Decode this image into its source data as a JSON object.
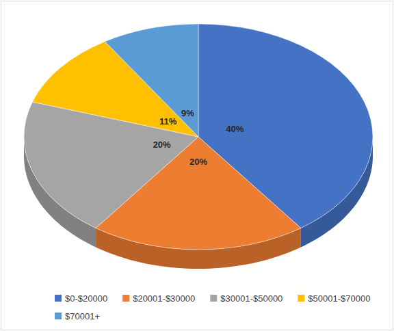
{
  "chart_data": {
    "type": "pie",
    "categories": [
      "$0-$20000",
      "$20001-$30000",
      "$30001-$50000",
      "$50001-$70000",
      "$70001+"
    ],
    "values": [
      40,
      20,
      20,
      11,
      9
    ],
    "value_labels": [
      "40%",
      "20%",
      "20%",
      "11%",
      "9%"
    ],
    "colors": [
      "#4472c4",
      "#ed7d31",
      "#a5a5a5",
      "#ffc000",
      "#5b9bd5"
    ],
    "data_labels": true,
    "legend": "bottom"
  }
}
